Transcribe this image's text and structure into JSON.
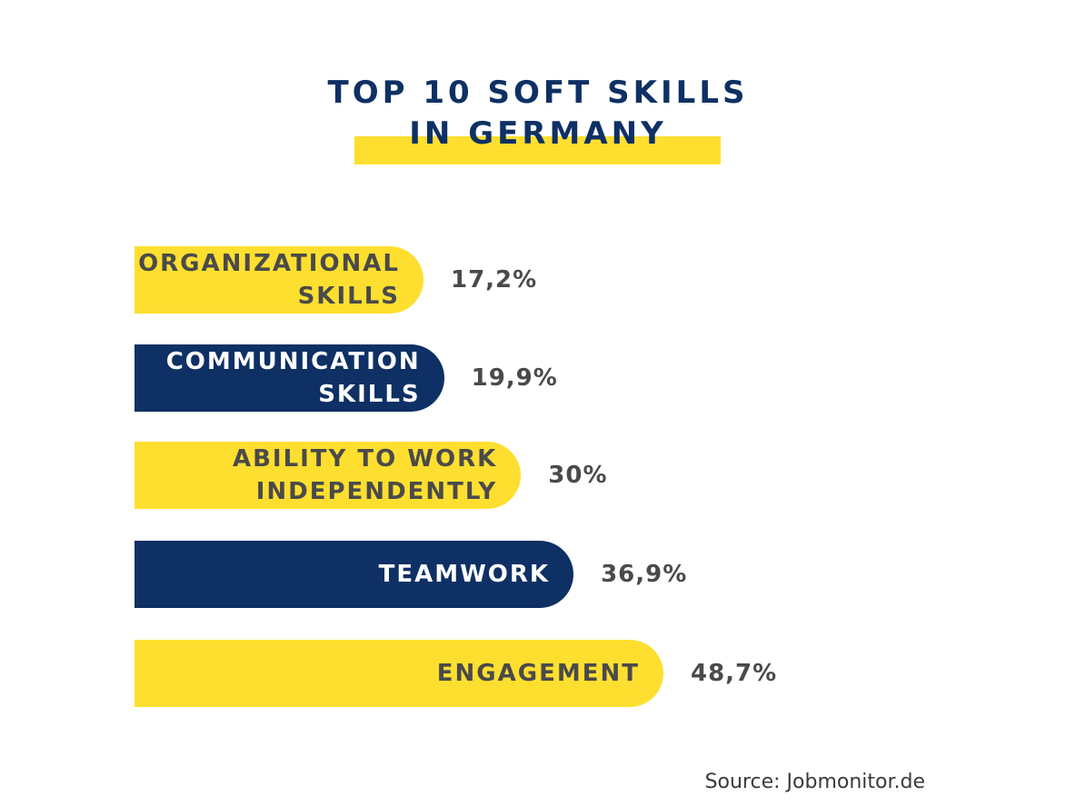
{
  "chart_data": {
    "type": "bar",
    "orientation": "horizontal",
    "title": "TOP 10 SOFT SKILLS IN GERMANY",
    "title_lines": [
      "TOP 10 SOFT SKILLS",
      "IN GERMANY"
    ],
    "categories": [
      "ORGANIZATIONAL\nSKILLS",
      "COMMUNICATION\nSKILLS",
      "ABILITY TO WORK\nINDEPENDENTLY",
      "TEAMWORK",
      "ENGAGEMENT"
    ],
    "values": [
      17.2,
      19.9,
      30,
      36.9,
      48.7
    ],
    "value_labels": [
      "17,2%",
      "19,9%",
      "30%",
      "36,9%",
      "48,7%"
    ],
    "bar_colors": [
      "#fedf2f",
      "#0e3064",
      "#fedf2f",
      "#0e3064",
      "#fedf2f"
    ],
    "label_colors": [
      "#4a4a4a",
      "#ffffff",
      "#4a4a4a",
      "#ffffff",
      "#4a4a4a"
    ],
    "xlim": [
      0,
      48.7
    ],
    "grid": false,
    "source": "Source: Jobmonitor.de"
  },
  "colors": {
    "navy": "#0e3064",
    "yellow": "#fedf2f",
    "text_gray": "#4a4a4a"
  }
}
